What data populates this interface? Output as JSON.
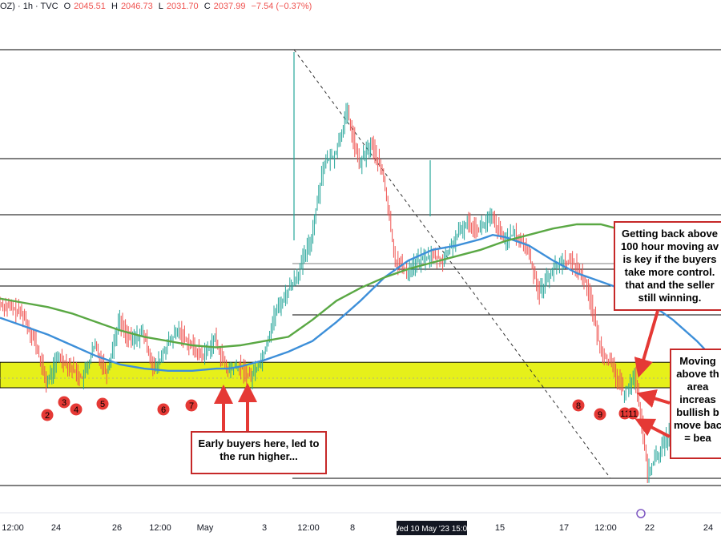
{
  "header": {
    "symbol": "OZ) · 1h · TVC",
    "open_label": "O",
    "open_value": "2045.51",
    "high_label": "H",
    "high_value": "2046.73",
    "low_label": "L",
    "low_value": "2031.70",
    "close_label": "C",
    "close_value": "2037.99",
    "change": "−7.54 (−0.37%)"
  },
  "colors": {
    "candle_up": "#26a69a",
    "candle_down": "#ef5350",
    "ma_100": "#3d8fd9",
    "ma_200": "#5aa844",
    "support_zone": "#e6f01a",
    "marker": "#e53935",
    "arrow": "#e53935",
    "level_line": "#000000"
  },
  "time_axis": {
    "ticks": [
      "12:00",
      "24",
      "26",
      "12:00",
      "May",
      "3",
      "12:00",
      "8",
      "15",
      "17",
      "12:00",
      "22",
      "24"
    ],
    "crosshair_label": "Wed 10 May '23   15:00"
  },
  "markers": [
    "2",
    "3",
    "4",
    "5",
    "6",
    "7",
    "8",
    "9",
    "11",
    "11"
  ],
  "annotations": {
    "early_buyers": "Early buyers here, led to\nthe run higher...",
    "moving_average": "Getting back above\n100 hour moving av\nis key if the buyers\ntake more control.  \nthat and the seller\nstill winning.",
    "support_area": "Moving\nabove th\narea \nincreas\nbullish b\nmove bac\n= bea"
  },
  "chart_data": {
    "type": "candlestick",
    "title": "",
    "xlabel": "",
    "ylabel": "",
    "ohlc_last": {
      "open": 2045.51,
      "high": 2046.73,
      "low": 2031.7,
      "close": 2037.99,
      "change": -7.54,
      "change_pct": -0.37
    },
    "series": [
      {
        "name": "",
        "kind": "moving_average",
        "period": 100,
        "values": [
          [
            0,
            0.73
          ],
          [
            2,
            0.69
          ],
          [
            4,
            0.65
          ],
          [
            6,
            0.6
          ],
          [
            8,
            0.55
          ],
          [
            10,
            0.51
          ],
          [
            12,
            0.49
          ],
          [
            14,
            0.48
          ],
          [
            16,
            0.48
          ],
          [
            18,
            0.49
          ],
          [
            19,
            0.49
          ],
          [
            20,
            0.5
          ],
          [
            22,
            0.53
          ],
          [
            24,
            0.57
          ],
          [
            26,
            0.62
          ],
          [
            28,
            0.71
          ],
          [
            30,
            0.81
          ],
          [
            32,
            0.92
          ],
          [
            34,
            1.0
          ],
          [
            36,
            1.05
          ],
          [
            38,
            1.07
          ],
          [
            40,
            1.1
          ],
          [
            41,
            1.12
          ],
          [
            42,
            1.11
          ],
          [
            44,
            1.07
          ],
          [
            46,
            1.0
          ],
          [
            48,
            0.94
          ],
          [
            50,
            0.9
          ],
          [
            52,
            0.86
          ],
          [
            54,
            0.8
          ],
          [
            56,
            0.72
          ],
          [
            58,
            0.62
          ],
          [
            59,
            0.56
          ]
        ]
      },
      {
        "name": "",
        "kind": "moving_average",
        "period": 200,
        "values": [
          [
            0,
            0.82
          ],
          [
            2,
            0.8
          ],
          [
            4,
            0.78
          ],
          [
            6,
            0.75
          ],
          [
            8,
            0.71
          ],
          [
            10,
            0.67
          ],
          [
            12,
            0.64
          ],
          [
            14,
            0.62
          ],
          [
            16,
            0.6
          ],
          [
            18,
            0.59
          ],
          [
            20,
            0.6
          ],
          [
            22,
            0.62
          ],
          [
            24,
            0.64
          ],
          [
            26,
            0.72
          ],
          [
            28,
            0.81
          ],
          [
            30,
            0.87
          ],
          [
            32,
            0.92
          ],
          [
            34,
            0.96
          ],
          [
            36,
            0.99
          ],
          [
            38,
            1.02
          ],
          [
            40,
            1.05
          ],
          [
            42,
            1.09
          ],
          [
            44,
            1.12
          ],
          [
            46,
            1.15
          ],
          [
            48,
            1.17
          ],
          [
            50,
            1.17
          ],
          [
            52,
            1.14
          ],
          [
            54,
            1.08
          ],
          [
            56,
            1.0
          ],
          [
            57,
            0.97
          ]
        ]
      },
      {
        "name": "",
        "kind": "price_path",
        "values": [
          [
            0,
            0.8
          ],
          [
            2,
            0.75
          ],
          [
            3,
            0.62
          ],
          [
            4,
            0.42
          ],
          [
            5,
            0.55
          ],
          [
            6,
            0.5
          ],
          [
            7,
            0.44
          ],
          [
            8,
            0.6
          ],
          [
            9,
            0.47
          ],
          [
            10,
            0.72
          ],
          [
            11,
            0.62
          ],
          [
            12,
            0.66
          ],
          [
            13,
            0.48
          ],
          [
            14,
            0.6
          ],
          [
            15,
            0.67
          ],
          [
            16,
            0.6
          ],
          [
            17,
            0.55
          ],
          [
            18,
            0.63
          ],
          [
            19,
            0.48
          ],
          [
            20,
            0.5
          ],
          [
            21,
            0.45
          ],
          [
            22,
            0.55
          ],
          [
            23,
            0.75
          ],
          [
            24,
            0.85
          ],
          [
            25,
            0.95
          ],
          [
            26,
            1.1
          ],
          [
            27,
            1.45
          ],
          [
            28,
            1.5
          ],
          [
            29,
            1.7
          ],
          [
            30,
            1.45
          ],
          [
            31,
            1.55
          ],
          [
            32,
            1.4
          ],
          [
            33,
            1.0
          ],
          [
            34,
            0.95
          ],
          [
            35,
            1.0
          ],
          [
            36,
            1.02
          ],
          [
            37,
            1.0
          ],
          [
            38,
            1.1
          ],
          [
            39,
            1.18
          ],
          [
            40,
            1.15
          ],
          [
            41,
            1.2
          ],
          [
            42,
            1.1
          ],
          [
            43,
            1.12
          ],
          [
            44,
            1.05
          ],
          [
            45,
            0.85
          ],
          [
            46,
            0.95
          ],
          [
            47,
            1.0
          ],
          [
            48,
            0.98
          ],
          [
            49,
            0.88
          ],
          [
            50,
            0.6
          ],
          [
            51,
            0.5
          ],
          [
            52,
            0.38
          ],
          [
            53,
            0.45
          ],
          [
            54,
            0.0
          ],
          [
            55,
            0.1
          ],
          [
            56,
            0.2
          ],
          [
            57,
            0.35
          ],
          [
            58,
            0.15
          ],
          [
            59,
            0.48
          ]
        ]
      }
    ],
    "support_zone": [
      0.4,
      0.52
    ],
    "grid": false
  }
}
